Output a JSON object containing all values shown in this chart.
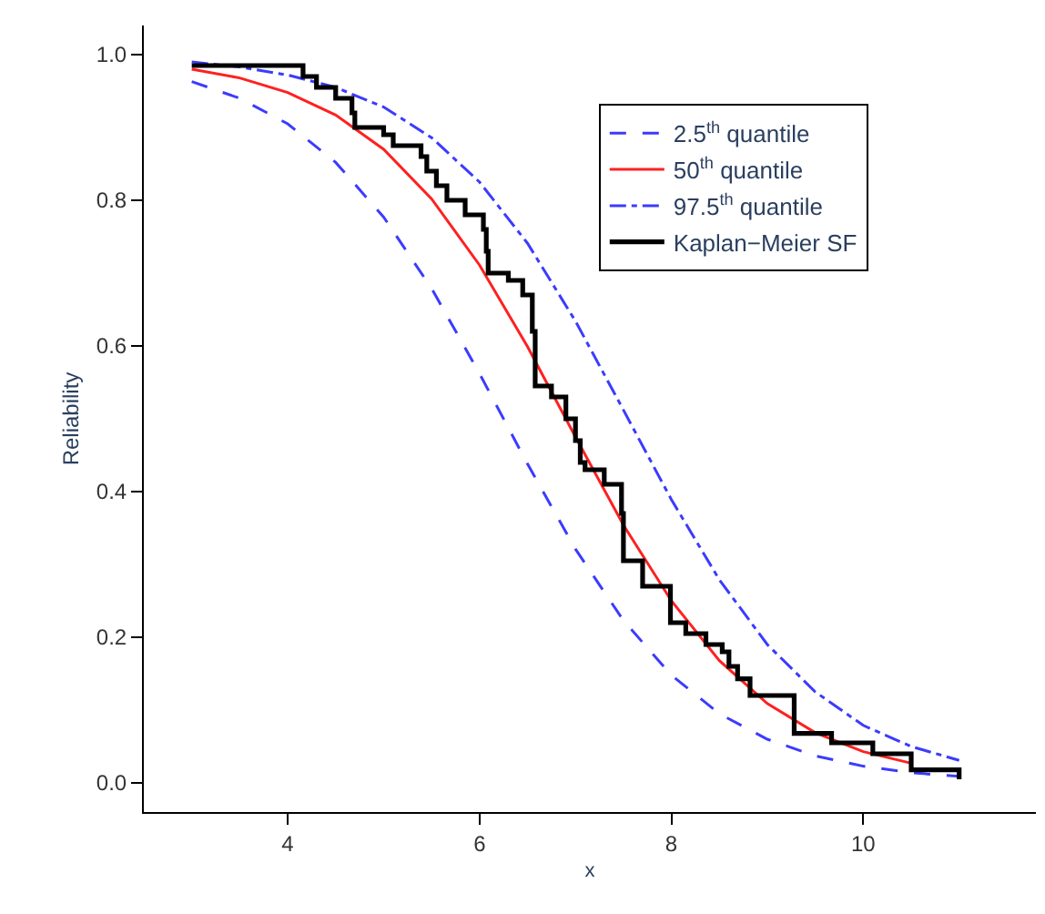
{
  "chart_data": {
    "type": "line",
    "xlabel": "x",
    "ylabel": "Reliability",
    "xlim": [
      2.5,
      11.8
    ],
    "xticks": [
      4,
      6,
      8,
      10
    ],
    "ylim": [
      -0.04,
      1.04
    ],
    "yticks": [
      {
        "value": 0,
        "label": "0.0"
      },
      {
        "value": 0.2,
        "label": "0.2"
      },
      {
        "value": 0.4,
        "label": "0.4"
      },
      {
        "value": 0.6,
        "label": "0.6"
      },
      {
        "value": 0.8,
        "label": "0.8"
      },
      {
        "value": 1,
        "label": "1.0"
      }
    ],
    "legend": "top right",
    "marker": "none",
    "series": [
      {
        "name": "2.5$^{th}$ quantile",
        "color": "#3b3bff",
        "line_style": "dashed",
        "x": [
          3,
          3.5,
          4,
          4.5,
          5,
          5.5,
          6,
          6.5,
          7,
          7.5,
          8,
          8.5,
          9,
          9.5,
          10,
          10.5,
          11
        ],
        "values": [
          0.963,
          0.94,
          0.905,
          0.852,
          0.777,
          0.679,
          0.562,
          0.438,
          0.321,
          0.223,
          0.148,
          0.095,
          0.06,
          0.037,
          0.023,
          0.014,
          0.009
        ]
      },
      {
        "name": "50$^{th}$ quantile",
        "color": "#ff2020",
        "line_style": "solid",
        "x": [
          3,
          3.5,
          4,
          4.5,
          5,
          5.5,
          6,
          6.5,
          7,
          7.5,
          8,
          8.5,
          9,
          9.5,
          10,
          10.5
        ],
        "values": [
          0.98,
          0.968,
          0.948,
          0.917,
          0.87,
          0.802,
          0.711,
          0.599,
          0.475,
          0.354,
          0.25,
          0.168,
          0.109,
          0.069,
          0.043,
          0.027
        ]
      },
      {
        "name": "97.5$^{th}$ quantile",
        "color": "#3b3bff",
        "line_style": "dashdot",
        "x": [
          3,
          3.5,
          4,
          4.5,
          5,
          5.5,
          6,
          6.5,
          7,
          7.5,
          8,
          8.5,
          9,
          9.5,
          10,
          10.5,
          11
        ],
        "values": [
          0.99,
          0.983,
          0.972,
          0.955,
          0.928,
          0.886,
          0.825,
          0.741,
          0.634,
          0.512,
          0.389,
          0.279,
          0.19,
          0.125,
          0.079,
          0.05,
          0.031
        ]
      },
      {
        "name": "Kaplan−Meier SF",
        "color": "#000000",
        "type": "step",
        "line_style": "solid",
        "x": [
          3.0,
          4.16,
          4.3,
          4.5,
          4.67,
          4.7,
          5.0,
          5.1,
          5.39,
          5.45,
          5.55,
          5.66,
          5.85,
          6.04,
          6.07,
          6.09,
          6.3,
          6.45,
          6.55,
          6.58,
          6.75,
          6.9,
          7.0,
          7.05,
          7.1,
          7.3,
          7.48,
          7.5,
          7.7,
          7.99,
          8.15,
          8.36,
          8.53,
          8.6,
          8.69,
          8.82,
          9.28,
          9.67,
          10.1,
          10.5,
          11.0
        ],
        "values": [
          0.985,
          0.97,
          0.955,
          0.94,
          0.92,
          0.9,
          0.89,
          0.875,
          0.86,
          0.84,
          0.82,
          0.8,
          0.78,
          0.76,
          0.73,
          0.7,
          0.69,
          0.67,
          0.62,
          0.545,
          0.53,
          0.5,
          0.47,
          0.44,
          0.43,
          0.41,
          0.37,
          0.305,
          0.27,
          0.22,
          0.205,
          0.19,
          0.18,
          0.16,
          0.143,
          0.12,
          0.068,
          0.055,
          0.04,
          0.018,
          0.005
        ]
      }
    ]
  }
}
